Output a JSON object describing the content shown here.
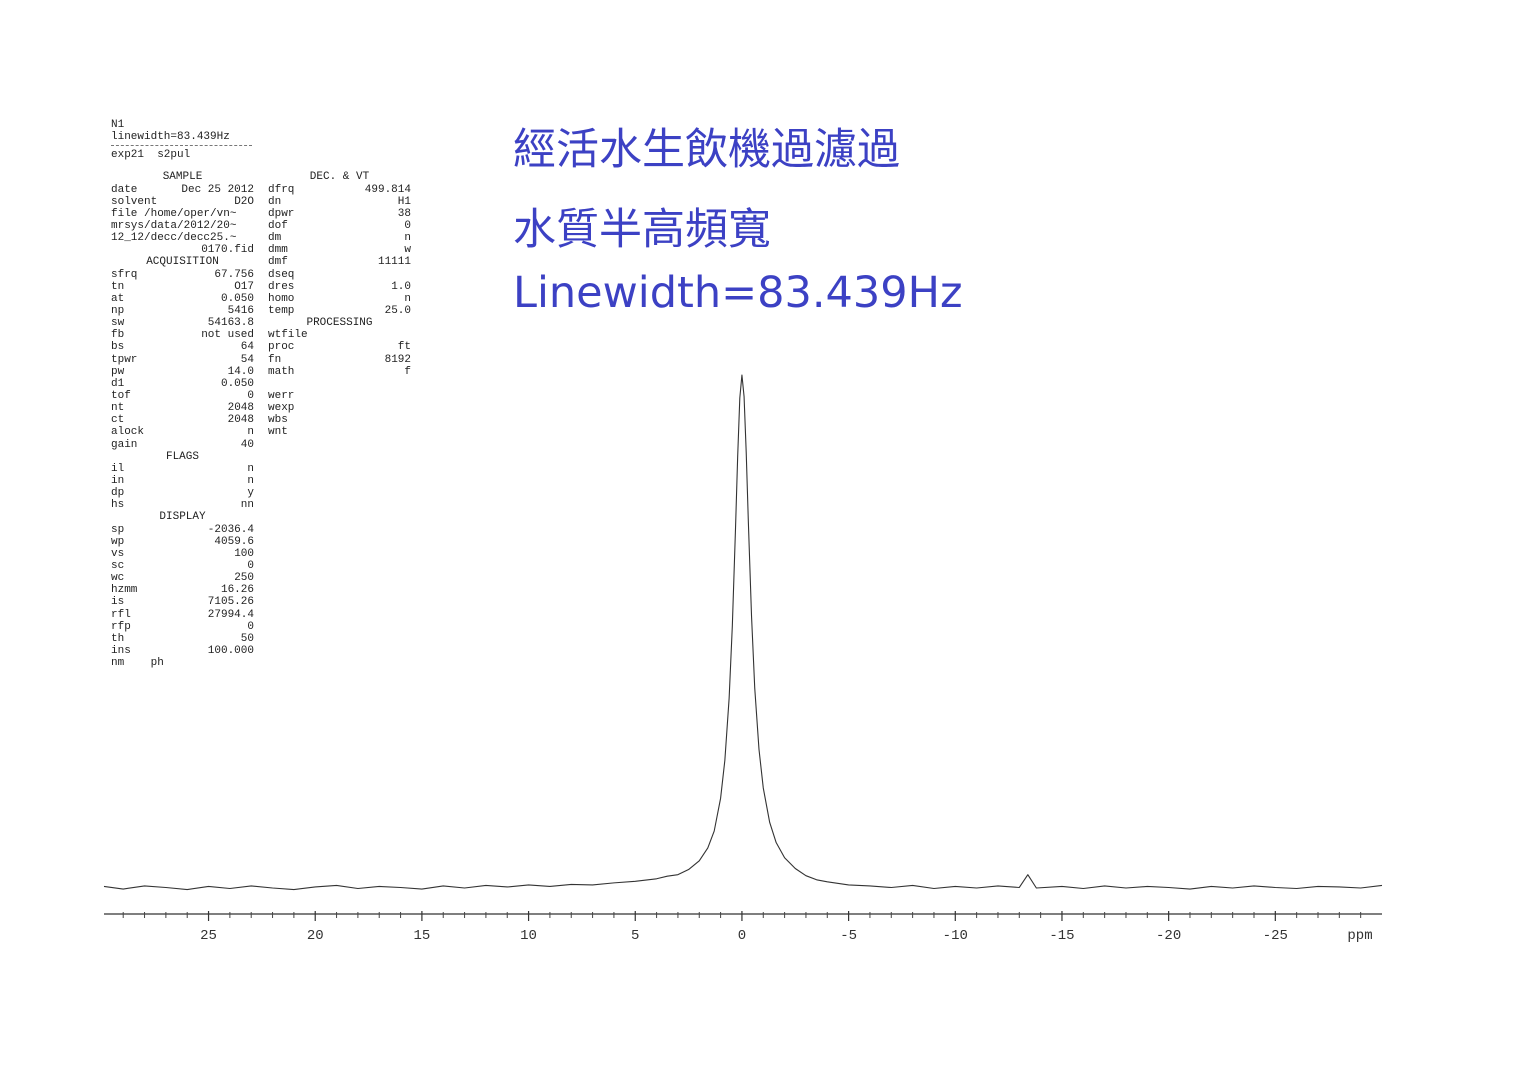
{
  "chart_data": {
    "type": "line",
    "annotations": [
      "經活水生飲機過濾過",
      "水質半高頻寬",
      "Linewidth=83.439Hz"
    ],
    "annotation_color": "#3c41c4",
    "x_label": "ppm",
    "xlim": [
      29.9,
      -30
    ],
    "ylim": [
      0,
      100
    ],
    "xticks": [
      25,
      20,
      15,
      10,
      5,
      0,
      -5,
      -10,
      -15,
      -20,
      -25
    ],
    "x_minor_ticks": [
      29,
      28,
      27,
      26,
      24,
      23,
      22,
      21,
      19,
      18,
      17,
      16,
      14,
      13,
      12,
      11,
      9,
      8,
      7,
      6,
      4,
      3,
      2,
      1,
      -1,
      -2,
      -3,
      -4,
      -6,
      -7,
      -8,
      -9,
      -11,
      -12,
      -13,
      -14,
      -16,
      -17,
      -18,
      -19,
      -21,
      -22,
      -23,
      -24,
      -26,
      -27,
      -28,
      -29
    ],
    "x": [
      29.9,
      29,
      28,
      27,
      26,
      25,
      24,
      23,
      22,
      21,
      20,
      19,
      18,
      17,
      16,
      15,
      14,
      13,
      12,
      11,
      10,
      9,
      8,
      7,
      6,
      5,
      4,
      3.5,
      3,
      2.5,
      2,
      1.6,
      1.3,
      1,
      0.8,
      0.6,
      0.45,
      0.3,
      0.2,
      0.1,
      0,
      -0.1,
      -0.2,
      -0.3,
      -0.45,
      -0.6,
      -0.8,
      -1,
      -1.3,
      -1.6,
      -2,
      -2.5,
      -3,
      -3.5,
      -4,
      -5,
      -6,
      -7,
      -8,
      -9,
      -10,
      -11,
      -12,
      -13,
      -13.4,
      -13.8,
      -15,
      -16,
      -17,
      -18,
      -19,
      -20,
      -21,
      -22,
      -23,
      -24,
      -25,
      -26,
      -27,
      -28,
      -29,
      -30
    ],
    "series": [
      {
        "color": "#333333",
        "values": [
          0.3,
          -0.2,
          0.4,
          0.1,
          -0.3,
          0.3,
          -0.1,
          0.4,
          0,
          -0.3,
          0.2,
          0.5,
          -0.1,
          0.3,
          0.1,
          -0.2,
          0.4,
          0,
          0.5,
          0.2,
          0.6,
          0.3,
          0.7,
          0.6,
          1.0,
          1.3,
          1.8,
          2.3,
          2.6,
          3.6,
          5.3,
          7.8,
          11.1,
          17.5,
          24.9,
          37,
          51.1,
          70.2,
          84.1,
          95.5,
          100,
          95.8,
          85,
          71.5,
          53,
          39,
          27,
          19.5,
          12.8,
          8.9,
          5.9,
          3.8,
          2.4,
          1.6,
          1.2,
          0.6,
          0.4,
          0.1,
          0.5,
          -0.1,
          0.3,
          0,
          0.4,
          0.1,
          2.6,
          0,
          0.3,
          -0.1,
          0.4,
          0,
          0.3,
          0.1,
          -0.2,
          0.3,
          0,
          0.4,
          0.1,
          -0.1,
          0.3,
          0.2,
          0,
          0.5
        ]
      }
    ]
  },
  "parameters": {
    "title": "N1",
    "linewidth": "linewidth=83.439Hz",
    "experiment": "exp21  s2pul",
    "left_column": [
      {
        "heading": "SAMPLE",
        "rows": [
          {
            "name": "date",
            "value": "Dec 25 2012"
          },
          {
            "name": "solvent",
            "value": "D2O"
          },
          {
            "text": "file /home/oper/vn~"
          },
          {
            "text": "mrsys/data/2012/20~"
          },
          {
            "text": "12_12/decc/decc25.~"
          },
          {
            "value": "0170.fid"
          }
        ]
      },
      {
        "heading": "ACQUISITION",
        "rows": [
          {
            "name": "sfrq",
            "value": "67.756"
          },
          {
            "name": "tn",
            "value": "O17"
          },
          {
            "name": "at",
            "value": "0.050"
          },
          {
            "name": "np",
            "value": "5416"
          },
          {
            "name": "sw",
            "value": "54163.8"
          },
          {
            "name": "fb",
            "value": "not used"
          },
          {
            "name": "bs",
            "value": "64"
          },
          {
            "name": "tpwr",
            "value": "54"
          },
          {
            "name": "pw",
            "value": "14.0"
          },
          {
            "name": "d1",
            "value": "0.050"
          },
          {
            "name": "tof",
            "value": "0"
          },
          {
            "name": "nt",
            "value": "2048"
          },
          {
            "name": "ct",
            "value": "2048"
          },
          {
            "name": "alock",
            "value": "n"
          },
          {
            "name": "gain",
            "value": "40"
          }
        ]
      },
      {
        "heading": "FLAGS",
        "rows": [
          {
            "name": "il",
            "value": "n"
          },
          {
            "name": "in",
            "value": "n"
          },
          {
            "name": "dp",
            "value": "y"
          },
          {
            "name": "hs",
            "value": "nn"
          }
        ]
      },
      {
        "heading": "DISPLAY",
        "rows": [
          {
            "name": "sp",
            "value": "-2036.4"
          },
          {
            "name": "wp",
            "value": "4059.6"
          },
          {
            "name": "vs",
            "value": "100"
          },
          {
            "name": "sc",
            "value": "0"
          },
          {
            "name": "wc",
            "value": "250"
          },
          {
            "name": "hzmm",
            "value": "16.26"
          },
          {
            "name": "is",
            "value": "7105.26"
          },
          {
            "name": "rfl",
            "value": "27994.4"
          },
          {
            "name": "rfp",
            "value": "0"
          },
          {
            "name": "th",
            "value": "50"
          },
          {
            "name": "ins",
            "value": "100.000"
          },
          {
            "text": "nm    ph"
          }
        ]
      }
    ],
    "right_column": [
      {
        "heading": "DEC. & VT",
        "rows": [
          {
            "name": "dfrq",
            "value": "499.814"
          },
          {
            "name": "dn",
            "value": "H1"
          },
          {
            "name": "dpwr",
            "value": "38"
          },
          {
            "name": "dof",
            "value": "0"
          },
          {
            "name": "dm",
            "value": "n"
          },
          {
            "name": "dmm",
            "value": "w"
          },
          {
            "name": "dmf",
            "value": "11111"
          },
          {
            "name": "dseq"
          },
          {
            "name": "dres",
            "value": "1.0"
          },
          {
            "name": "homo",
            "value": "n"
          },
          {
            "name": "temp",
            "value": "25.0"
          }
        ]
      },
      {
        "heading": "PROCESSING",
        "rows": [
          {
            "name": "wtfile"
          },
          {
            "name": "proc",
            "value": "ft"
          },
          {
            "name": "fn",
            "value": "8192"
          },
          {
            "name": "math",
            "value": "f"
          }
        ]
      },
      {
        "rows": [
          {
            "name": "werr"
          },
          {
            "name": "wexp"
          },
          {
            "name": "wbs"
          },
          {
            "name": "wnt"
          }
        ]
      }
    ]
  }
}
